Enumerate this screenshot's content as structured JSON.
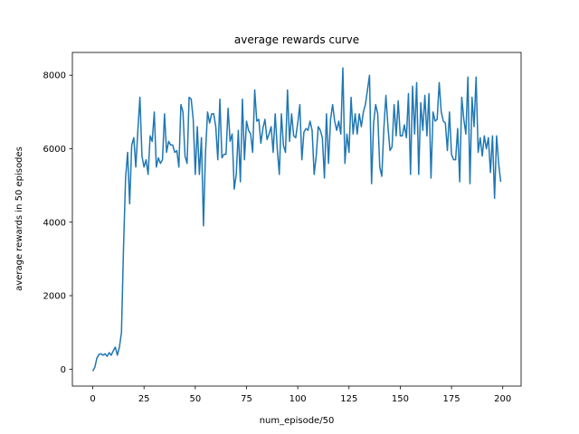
{
  "chart_data": {
    "type": "line",
    "title": "average rewards curve",
    "x_label": "num_episode/50",
    "y_label": "average rewards in 50 episodes",
    "color": "#1f77b4",
    "x": [
      0,
      1,
      2,
      3,
      4,
      5,
      6,
      7,
      8,
      9,
      10,
      11,
      12,
      13,
      14,
      15,
      16,
      17,
      18,
      19,
      20,
      21,
      22,
      23,
      24,
      25,
      26,
      27,
      28,
      29,
      30,
      31,
      32,
      33,
      34,
      35,
      36,
      37,
      38,
      39,
      40,
      41,
      42,
      43,
      44,
      45,
      46,
      47,
      48,
      49,
      50,
      51,
      52,
      53,
      54,
      55,
      56,
      57,
      58,
      59,
      60,
      61,
      62,
      63,
      64,
      65,
      66,
      67,
      68,
      69,
      70,
      71,
      72,
      73,
      74,
      75,
      76,
      77,
      78,
      79,
      80,
      81,
      82,
      83,
      84,
      85,
      86,
      87,
      88,
      89,
      90,
      91,
      92,
      93,
      94,
      95,
      96,
      97,
      98,
      99,
      100,
      101,
      102,
      103,
      104,
      105,
      106,
      107,
      108,
      109,
      110,
      111,
      112,
      113,
      114,
      115,
      116,
      117,
      118,
      119,
      120,
      121,
      122,
      123,
      124,
      125,
      126,
      127,
      128,
      129,
      130,
      131,
      132,
      133,
      134,
      135,
      136,
      137,
      138,
      139,
      140,
      141,
      142,
      143,
      144,
      145,
      146,
      147,
      148,
      149,
      150,
      151,
      152,
      153,
      154,
      155,
      156,
      157,
      158,
      159,
      160,
      161,
      162,
      163,
      164,
      165,
      166,
      167,
      168,
      169,
      170,
      171,
      172,
      173,
      174,
      175,
      176,
      177,
      178,
      179,
      180,
      181,
      182,
      183,
      184,
      185,
      186,
      187,
      188,
      189,
      190,
      191,
      192,
      193,
      194,
      195,
      196,
      197,
      198,
      199
    ],
    "values": [
      -50,
      50,
      300,
      400,
      420,
      380,
      420,
      350,
      450,
      380,
      500,
      600,
      380,
      600,
      1000,
      3300,
      5200,
      5900,
      4500,
      6100,
      6300,
      5500,
      6500,
      7400,
      5800,
      5500,
      5700,
      5300,
      6350,
      6200,
      7000,
      5500,
      5750,
      5600,
      5700,
      6950,
      5900,
      6200,
      6100,
      6100,
      5900,
      5950,
      5500,
      7200,
      7000,
      5800,
      5600,
      7400,
      7350,
      6800,
      5300,
      6600,
      5300,
      6300,
      3900,
      5900,
      7000,
      6700,
      6950,
      6950,
      6600,
      5700,
      7350,
      5750,
      5850,
      5850,
      7100,
      6200,
      6400,
      4900,
      5300,
      6500,
      5100,
      7350,
      5700,
      6750,
      6500,
      6400,
      5900,
      7600,
      6750,
      6800,
      6150,
      6550,
      6800,
      6250,
      6400,
      6600,
      5900,
      6950,
      6000,
      5300,
      6950,
      6100,
      5900,
      7600,
      6200,
      6950,
      6350,
      6300,
      6700,
      7200,
      5700,
      6450,
      6550,
      6500,
      6750,
      6500,
      5300,
      5800,
      6600,
      6500,
      6300,
      5200,
      6950,
      5600,
      6800,
      7200,
      6750,
      6500,
      6750,
      6400,
      8200,
      5600,
      6400,
      5900,
      7400,
      6400,
      6950,
      6400,
      6950,
      6600,
      7000,
      7200,
      7600,
      8000,
      5050,
      6700,
      7200,
      6950,
      5500,
      5250,
      6550,
      7450,
      6600,
      5950,
      6050,
      7200,
      6350,
      7300,
      6350,
      6350,
      6650,
      6300,
      7500,
      5300,
      7700,
      6400,
      7800,
      5300,
      7250,
      6500,
      7450,
      6350,
      7500,
      5200,
      7000,
      6750,
      6800,
      7800,
      7000,
      6750,
      6700,
      5950,
      7000,
      5850,
      5700,
      5700,
      6550,
      5100,
      7400,
      6800,
      6400,
      7950,
      5050,
      7400,
      6600,
      7950,
      5900,
      6300,
      5800,
      6350,
      6000,
      6300,
      5350,
      6350,
      4650,
      6350,
      5600,
      5100
    ],
    "xlim": [
      -9.95,
      208.95
    ],
    "ylim": [
      -460,
      8620
    ],
    "xticks": [
      0,
      25,
      50,
      75,
      100,
      125,
      150,
      175,
      200
    ],
    "yticks": [
      0,
      2000,
      4000,
      6000,
      8000
    ]
  }
}
